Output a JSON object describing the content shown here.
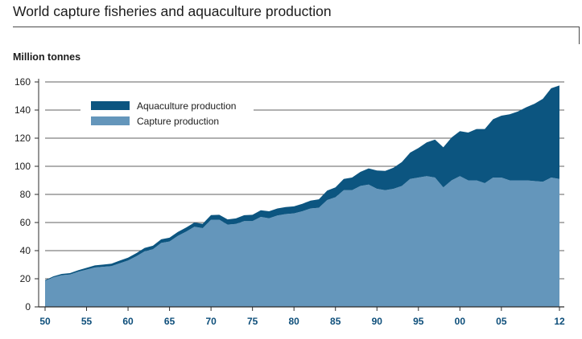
{
  "chart_data": {
    "type": "area",
    "stacked": true,
    "title": "World capture fisheries and aquaculture production",
    "ylabel": "Million tonnes",
    "xlabel": "",
    "ylim": [
      0,
      160
    ],
    "yticks": [
      0,
      20,
      40,
      60,
      80,
      100,
      120,
      140,
      160
    ],
    "xlim": [
      1950,
      2012
    ],
    "xticks": [
      {
        "value": 1950,
        "label": "50"
      },
      {
        "value": 1955,
        "label": "55"
      },
      {
        "value": 1960,
        "label": "60"
      },
      {
        "value": 1965,
        "label": "65"
      },
      {
        "value": 1970,
        "label": "70"
      },
      {
        "value": 1975,
        "label": "75"
      },
      {
        "value": 1980,
        "label": "80"
      },
      {
        "value": 1985,
        "label": "85"
      },
      {
        "value": 1990,
        "label": "90"
      },
      {
        "value": 1995,
        "label": "95"
      },
      {
        "value": 2000,
        "label": "00"
      },
      {
        "value": 2005,
        "label": "05"
      },
      {
        "value": 2012,
        "label": "12"
      }
    ],
    "grid": "horizontal",
    "legend_position": "top-left",
    "x": [
      1950,
      1951,
      1952,
      1953,
      1954,
      1955,
      1956,
      1957,
      1958,
      1959,
      1960,
      1961,
      1962,
      1963,
      1964,
      1965,
      1966,
      1967,
      1968,
      1969,
      1970,
      1971,
      1972,
      1973,
      1974,
      1975,
      1976,
      1977,
      1978,
      1979,
      1980,
      1981,
      1982,
      1983,
      1984,
      1985,
      1986,
      1987,
      1988,
      1989,
      1990,
      1991,
      1992,
      1993,
      1994,
      1995,
      1996,
      1997,
      1998,
      1999,
      2000,
      2001,
      2002,
      2003,
      2004,
      2005,
      2006,
      2007,
      2008,
      2009,
      2010,
      2011,
      2012
    ],
    "series": [
      {
        "name": "Capture production",
        "color": "#6496bb",
        "values": [
          18.5,
          21,
          22.5,
          23,
          25,
          26.5,
          28,
          28.5,
          29,
          31,
          33,
          36,
          39.5,
          41,
          45.5,
          46.5,
          50.5,
          53.5,
          57,
          56,
          62,
          62,
          58.5,
          59,
          61,
          61,
          64,
          63,
          65,
          66,
          66.5,
          68,
          70,
          70.5,
          76,
          78,
          83,
          83,
          86,
          87,
          84,
          83,
          84,
          86,
          91,
          92,
          93,
          92,
          85,
          90,
          93,
          90,
          90,
          88,
          92,
          92,
          90,
          90,
          90,
          89.5,
          89,
          92,
          91
        ]
      },
      {
        "name": "Aquaculture production",
        "color": "#0c5580",
        "values": [
          0.5,
          0.7,
          0.9,
          1,
          1.1,
          1.3,
          1.5,
          1.6,
          1.7,
          1.9,
          2,
          2.2,
          2.4,
          2.5,
          2.6,
          2.7,
          2.8,
          2.9,
          3,
          3.1,
          3.3,
          3.5,
          3.7,
          3.9,
          4.2,
          4.5,
          4.7,
          5,
          5,
          5,
          5,
          5.3,
          5.6,
          6,
          6.7,
          7,
          8,
          9,
          10,
          11.5,
          13,
          13.7,
          15,
          17,
          18.7,
          21,
          24,
          27,
          28.5,
          30.5,
          32,
          34,
          36.5,
          38.5,
          41.5,
          44,
          47,
          49,
          52,
          55,
          59,
          63.5,
          66.5
        ]
      }
    ]
  }
}
